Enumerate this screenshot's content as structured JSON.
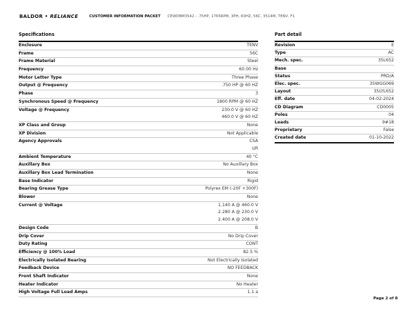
{
  "header": {
    "logo_text": "BALDOR • RELIANCE",
    "logo_left": "BALDOR",
    "logo_sep": "•",
    "logo_right": "RELIANCE",
    "packet_title": "CUSTOMER INFORMATION PACKET",
    "description": "CEWDBM3542 - .75HP, 1765RPM, 3PH, 60HZ, 56C, 3514M, TENV, F1"
  },
  "specifications": {
    "title": "Specifications",
    "rows": [
      {
        "label": "Enclosure",
        "values": [
          "TENV"
        ]
      },
      {
        "label": "Frame",
        "values": [
          "56C"
        ]
      },
      {
        "label": "Frame Material",
        "values": [
          "Steel"
        ]
      },
      {
        "label": "Frequency",
        "values": [
          "60.00 Hz"
        ]
      },
      {
        "label": "Motor Letter Type",
        "values": [
          "Three Phase"
        ]
      },
      {
        "label": "Output @ Frequency",
        "values": [
          ".750 HP @ 60 HZ"
        ]
      },
      {
        "label": "Phase",
        "values": [
          "3"
        ]
      },
      {
        "label": "Synchronous Speed @ Frequency",
        "values": [
          "1800 RPM @ 60 HZ"
        ]
      },
      {
        "label": "Voltage @ Frequency",
        "values": [
          "230.0 V @ 60 HZ",
          "460.0 V @ 60 HZ"
        ]
      },
      {
        "label": "XP Class and Group",
        "values": [
          "None"
        ]
      },
      {
        "label": "XP Division",
        "values": [
          "Not Applicable"
        ]
      },
      {
        "label": "Agency Approvals",
        "values": [
          "CSA",
          "UR"
        ]
      },
      {
        "label": "Ambient Temperature",
        "values": [
          "40 °C"
        ]
      },
      {
        "label": "Auxillary Box",
        "values": [
          "No Auxillary Box"
        ]
      },
      {
        "label": "Auxillary Box Lead Termination",
        "values": [
          "None"
        ]
      },
      {
        "label": "Base Indicator",
        "values": [
          "Rigid"
        ]
      },
      {
        "label": "Bearing Grease Type",
        "values": [
          "Polyrex EM (-20F +300F)"
        ]
      },
      {
        "label": "Blower",
        "values": [
          "None"
        ]
      },
      {
        "label": "Current @ Voltage",
        "values": [
          "1.140 A @ 460.0 V",
          "2.280 A @ 230.0 V",
          "2.400 A @ 208.0 V"
        ]
      },
      {
        "label": "Design Code",
        "values": [
          "B"
        ]
      },
      {
        "label": "Drip Cover",
        "values": [
          "No Drip Cover"
        ]
      },
      {
        "label": "Duty Rating",
        "values": [
          "CONT"
        ]
      },
      {
        "label": "Efficiency @ 100% Load",
        "values": [
          "82.5 %"
        ]
      },
      {
        "label": "Electrically Isolated Bearing",
        "values": [
          "Not Electrically Isolated"
        ]
      },
      {
        "label": "Feedback Device",
        "values": [
          "NO FEEDBACK"
        ]
      },
      {
        "label": "Front Shaft Indicator",
        "values": [
          "None"
        ]
      },
      {
        "label": "Heater Indicator",
        "values": [
          "No Heater"
        ]
      },
      {
        "label": "High Voltage Full Load Amps",
        "values": [
          "1.1 a"
        ]
      }
    ]
  },
  "part_detail": {
    "title": "Part detail",
    "rows": [
      {
        "label": "Revision",
        "value": "E"
      },
      {
        "label": "Type",
        "value": "AC"
      },
      {
        "label": "Mech. spec.",
        "value": "35L652"
      },
      {
        "label": "Base",
        "value": ""
      },
      {
        "label": "Status",
        "value": "PRD/A"
      },
      {
        "label": "Elec. spec.",
        "value": "35WGG069"
      },
      {
        "label": "Layout",
        "value": "35LYL652"
      },
      {
        "label": "Eff. date",
        "value": "04-02-2024"
      },
      {
        "label": "CD Diagram",
        "value": "CD0005"
      },
      {
        "label": "Poles",
        "value": "04"
      },
      {
        "label": "Leads",
        "value": "9#18"
      },
      {
        "label": "Proprietary",
        "value": "False"
      },
      {
        "label": "Created date",
        "value": "01-10-2022"
      }
    ]
  },
  "footer": {
    "page": "Page 2 of 8"
  }
}
